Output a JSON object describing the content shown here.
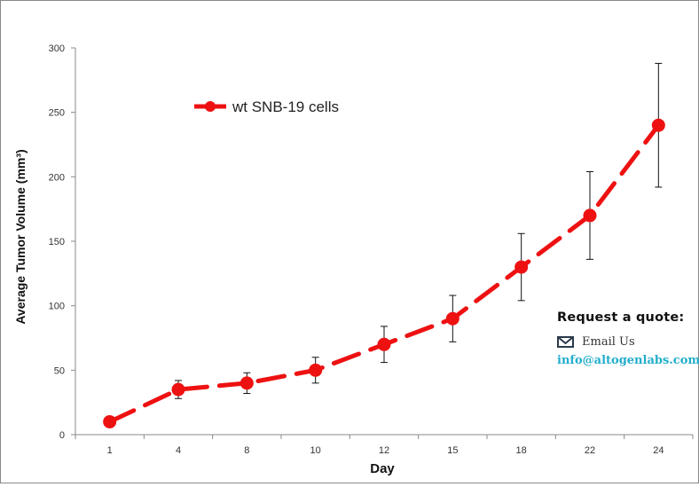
{
  "chart_data": {
    "type": "line",
    "categories": [
      "1",
      "4",
      "8",
      "10",
      "12",
      "15",
      "18",
      "22",
      "24"
    ],
    "series": [
      {
        "name": "wt SNB-19 cells",
        "values": [
          10,
          35,
          40,
          50,
          70,
          90,
          130,
          170,
          240
        ],
        "error": [
          0,
          7,
          8,
          10,
          14,
          18,
          26,
          34,
          48
        ],
        "color": "#ee1111",
        "line_style": "dashed"
      }
    ],
    "xlabel": "Day",
    "ylabel": "Average Tumor Volume (mm³)",
    "ylim": [
      0,
      300
    ],
    "yticks": [
      "0",
      "50",
      "100",
      "150",
      "200",
      "250",
      "300"
    ],
    "grid": false,
    "legend_position": "top-left"
  },
  "quote": {
    "title": "Request a quote:",
    "email_label": "Email Us",
    "email_address": "info@altogenlabs.com",
    "email_icon": "envelope-icon",
    "accent_color": "#22aecd"
  }
}
